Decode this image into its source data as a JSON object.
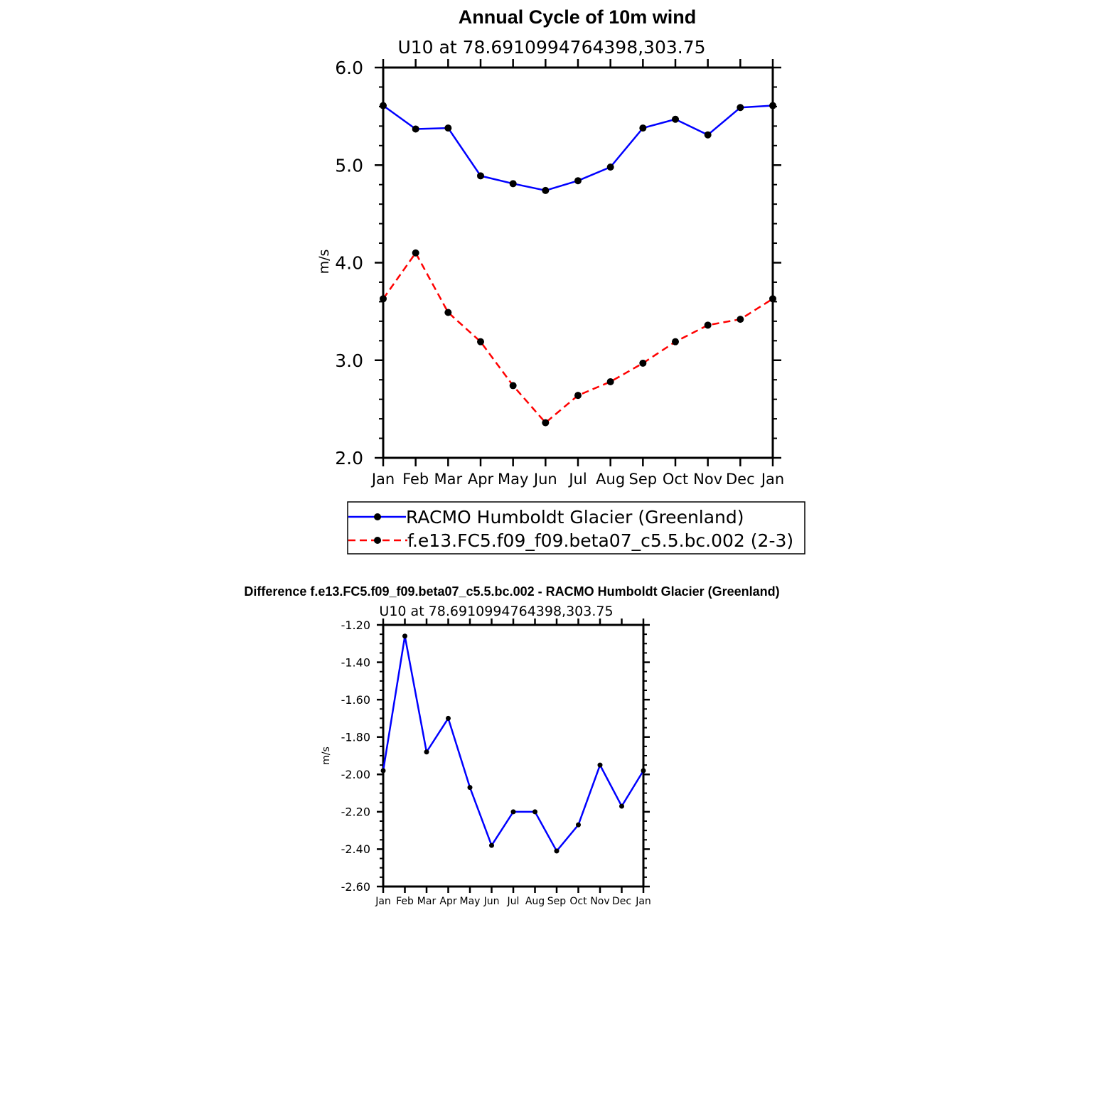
{
  "chart_data": [
    {
      "type": "line",
      "title": "Annual Cycle of 10m wind",
      "subtitle": "U10 at 78.6910994764398,303.75",
      "ylabel": "m/s",
      "xlabel": "",
      "categories": [
        "Jan",
        "Feb",
        "Mar",
        "Apr",
        "May",
        "Jun",
        "Jul",
        "Aug",
        "Sep",
        "Oct",
        "Nov",
        "Dec",
        "Jan"
      ],
      "ylim": [
        2.0,
        6.0
      ],
      "yticks": [
        "2.0",
        "3.0",
        "4.0",
        "5.0",
        "6.0"
      ],
      "legend": "bottom",
      "series": [
        {
          "name": "RACMO Humboldt Glacier (Greenland)",
          "color": "#0000ff",
          "dash": "solid",
          "values": [
            5.61,
            5.37,
            5.38,
            4.89,
            4.81,
            4.74,
            4.84,
            4.98,
            5.38,
            5.47,
            5.31,
            5.59,
            5.61
          ]
        },
        {
          "name": "f.e13.FC5.f09_f09.beta07_c5.5.bc.002 (2-3)",
          "color": "#ff0000",
          "dash": "dashed",
          "values": [
            3.63,
            4.1,
            3.49,
            3.19,
            2.74,
            2.36,
            2.64,
            2.78,
            2.97,
            3.19,
            3.36,
            3.42,
            3.63
          ]
        }
      ]
    },
    {
      "type": "line",
      "title": "Difference f.e13.FC5.f09_f09.beta07_c5.5.bc.002 - RACMO Humboldt Glacier (Greenland)",
      "subtitle": "U10 at 78.6910994764398,303.75",
      "ylabel": "m/s",
      "xlabel": "",
      "categories": [
        "Jan",
        "Feb",
        "Mar",
        "Apr",
        "May",
        "Jun",
        "Jul",
        "Aug",
        "Sep",
        "Oct",
        "Nov",
        "Dec",
        "Jan"
      ],
      "ylim": [
        -2.6,
        -1.2
      ],
      "yticks": [
        "-2.60",
        "-2.40",
        "-2.20",
        "-2.00",
        "-1.80",
        "-1.60",
        "-1.40",
        "-1.20"
      ],
      "series": [
        {
          "name": "Difference",
          "color": "#0000ff",
          "dash": "solid",
          "values": [
            -1.98,
            -1.26,
            -1.88,
            -1.7,
            -2.07,
            -2.38,
            -2.2,
            -2.2,
            -2.41,
            -2.27,
            -1.95,
            -2.17,
            -1.98
          ]
        }
      ]
    }
  ]
}
